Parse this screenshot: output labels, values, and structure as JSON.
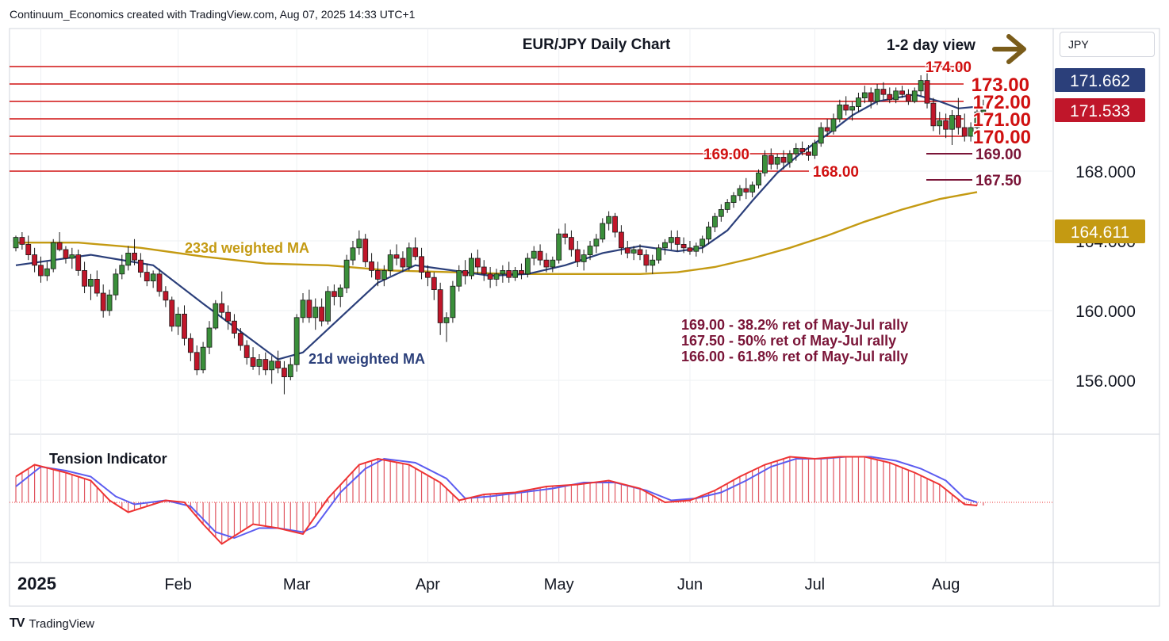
{
  "header": {
    "text": "Continuum_Economics created with TradingView.com, Aug 07, 2025 14:33 UTC+1"
  },
  "footer": {
    "logo": "TV",
    "brand": "TradingView"
  },
  "currency": "JPY",
  "colors": {
    "resistance": "#d01010",
    "support": "#7a1538",
    "up_candle": "#3a8f3a",
    "down_candle": "#c0162a",
    "ma21": "#2b3f7a",
    "ma233": "#c49a12",
    "arrow": "#7a5c1a",
    "tension_bar": "#e05560",
    "tension_fast": "#ee3333",
    "tension_slow": "#5c5cf0"
  },
  "icons": {
    "arrow": "right-arrow-icon",
    "logo": "tradingview-logo-icon"
  },
  "chart_data": {
    "type": "candlestick",
    "title": "EUR/JPY Daily Chart",
    "view_label": "1-2 day view",
    "x_labels": [
      "2025",
      "Feb",
      "Mar",
      "Apr",
      "May",
      "Jun",
      "Jul",
      "Aug"
    ],
    "y_ticks": [
      156.0,
      160.0,
      164.0,
      168.0
    ],
    "y_tick_labels": [
      "156.000",
      "160.000",
      "164.000",
      "168.000"
    ],
    "price_tags": [
      {
        "value": 171.662,
        "label": "171.662",
        "color": "#2b3f7a"
      },
      {
        "value": 171.533,
        "label": "171.533",
        "color": "#c0162a"
      },
      {
        "value": 164.611,
        "label": "164.611",
        "color": "#c49a12"
      }
    ],
    "resistance_levels": [
      174.0,
      173.0,
      172.0,
      171.0,
      170.0,
      169.0,
      168.0
    ],
    "resistance_labels": [
      "174.00",
      "173.00",
      "172.00",
      "171.00",
      "170.00",
      "169.00",
      "168.00"
    ],
    "support_levels": [
      169.0,
      167.5
    ],
    "support_labels": [
      "169.00",
      "167.50"
    ],
    "ma_labels": {
      "ma233": "233d weighted MA",
      "ma21": "21d weighted MA"
    },
    "notes": [
      "169.00 - 38.2% ret of May-Jul rally",
      "167.50 - 50% ret of May-Jul rally",
      "166.00 - 61.8% ret of May-Jul rally"
    ],
    "indicator": {
      "label": "Tension Indicator"
    },
    "candles": [
      [
        163.6,
        164.3,
        163.4,
        164.2
      ],
      [
        164.2,
        164.5,
        163.5,
        163.8
      ],
      [
        163.8,
        164.3,
        162.9,
        163.2
      ],
      [
        163.2,
        163.6,
        162.2,
        162.6
      ],
      [
        162.6,
        163.1,
        161.6,
        162.0
      ],
      [
        162.0,
        162.8,
        161.7,
        162.4
      ],
      [
        162.4,
        164.1,
        162.2,
        163.9
      ],
      [
        163.9,
        164.5,
        163.4,
        163.5
      ],
      [
        163.5,
        163.7,
        162.7,
        163.0
      ],
      [
        163.0,
        163.6,
        162.4,
        163.2
      ],
      [
        163.2,
        163.5,
        162.0,
        162.3
      ],
      [
        162.3,
        162.8,
        161.0,
        161.4
      ],
      [
        161.4,
        162.1,
        160.6,
        161.8
      ],
      [
        161.8,
        162.3,
        160.8,
        161.0
      ],
      [
        161.0,
        161.5,
        159.6,
        160.0
      ],
      [
        160.0,
        161.2,
        159.7,
        160.9
      ],
      [
        160.9,
        162.4,
        160.6,
        162.1
      ],
      [
        162.1,
        163.2,
        161.8,
        162.6
      ],
      [
        162.6,
        163.7,
        162.3,
        163.3
      ],
      [
        163.3,
        164.1,
        162.6,
        162.9
      ],
      [
        162.9,
        163.3,
        161.9,
        162.2
      ],
      [
        162.2,
        162.7,
        161.4,
        161.7
      ],
      [
        161.7,
        162.3,
        161.3,
        162.1
      ],
      [
        162.1,
        162.4,
        160.8,
        161.1
      ],
      [
        161.1,
        161.4,
        160.2,
        160.6
      ],
      [
        160.6,
        160.8,
        158.8,
        159.1
      ],
      [
        159.1,
        160.2,
        158.6,
        159.8
      ],
      [
        159.8,
        160.3,
        158.0,
        158.4
      ],
      [
        158.4,
        158.7,
        157.1,
        157.6
      ],
      [
        157.6,
        158.0,
        156.3,
        156.6
      ],
      [
        156.6,
        158.2,
        156.4,
        157.9
      ],
      [
        157.9,
        159.4,
        157.5,
        159.0
      ],
      [
        159.0,
        160.6,
        158.9,
        160.4
      ],
      [
        160.4,
        161.1,
        159.6,
        159.9
      ],
      [
        159.9,
        160.3,
        158.9,
        159.4
      ],
      [
        159.4,
        159.8,
        158.4,
        158.7
      ],
      [
        158.7,
        159.0,
        157.7,
        158.0
      ],
      [
        158.0,
        158.3,
        156.9,
        157.3
      ],
      [
        157.3,
        157.9,
        156.6,
        156.8
      ],
      [
        156.8,
        157.5,
        156.3,
        157.2
      ],
      [
        157.2,
        157.6,
        156.3,
        156.6
      ],
      [
        156.6,
        157.4,
        155.8,
        157.1
      ],
      [
        157.1,
        157.7,
        156.4,
        156.7
      ],
      [
        156.7,
        157.1,
        155.2,
        156.2
      ],
      [
        156.2,
        157.3,
        156.0,
        156.9
      ],
      [
        156.9,
        159.8,
        156.5,
        159.6
      ],
      [
        159.6,
        161.0,
        159.3,
        160.6
      ],
      [
        160.6,
        161.2,
        159.3,
        159.6
      ],
      [
        159.6,
        160.7,
        158.9,
        160.2
      ],
      [
        160.2,
        160.7,
        159.1,
        159.4
      ],
      [
        159.4,
        161.4,
        159.2,
        161.1
      ],
      [
        161.1,
        161.5,
        160.3,
        160.8
      ],
      [
        160.8,
        161.5,
        160.2,
        161.3
      ],
      [
        161.3,
        163.2,
        161.0,
        162.9
      ],
      [
        162.9,
        164.0,
        162.6,
        163.6
      ],
      [
        163.6,
        164.6,
        163.2,
        164.1
      ],
      [
        164.1,
        164.4,
        162.5,
        162.8
      ],
      [
        162.8,
        163.3,
        161.9,
        162.3
      ],
      [
        162.3,
        162.8,
        161.4,
        161.8
      ],
      [
        161.8,
        162.6,
        161.4,
        162.3
      ],
      [
        162.3,
        163.5,
        162.0,
        163.2
      ],
      [
        163.2,
        163.8,
        162.6,
        163.0
      ],
      [
        163.0,
        163.4,
        162.2,
        162.5
      ],
      [
        162.5,
        163.9,
        162.3,
        163.6
      ],
      [
        163.6,
        164.2,
        162.9,
        163.1
      ],
      [
        163.1,
        163.6,
        161.8,
        162.2
      ],
      [
        162.2,
        162.6,
        161.4,
        161.9
      ],
      [
        161.9,
        162.2,
        160.6,
        161.2
      ],
      [
        161.2,
        161.6,
        158.6,
        159.3
      ],
      [
        159.3,
        159.9,
        158.2,
        159.6
      ],
      [
        159.6,
        161.7,
        159.3,
        161.4
      ],
      [
        161.4,
        162.6,
        161.1,
        162.3
      ],
      [
        162.3,
        162.9,
        161.5,
        162.0
      ],
      [
        162.0,
        163.3,
        161.8,
        163.0
      ],
      [
        163.0,
        163.5,
        162.1,
        162.5
      ],
      [
        162.5,
        162.9,
        161.7,
        162.1
      ],
      [
        162.1,
        162.5,
        161.3,
        161.8
      ],
      [
        161.8,
        162.4,
        161.4,
        162.1
      ],
      [
        162.1,
        162.6,
        161.6,
        162.3
      ],
      [
        162.3,
        162.8,
        161.6,
        161.9
      ],
      [
        161.9,
        162.5,
        161.7,
        162.3
      ],
      [
        162.3,
        162.7,
        161.8,
        162.1
      ],
      [
        162.1,
        163.3,
        161.9,
        163.0
      ],
      [
        163.0,
        163.7,
        162.6,
        163.4
      ],
      [
        163.4,
        163.8,
        162.6,
        162.9
      ],
      [
        162.9,
        163.3,
        162.2,
        162.5
      ],
      [
        162.5,
        163.1,
        162.2,
        162.9
      ],
      [
        162.9,
        164.7,
        162.7,
        164.4
      ],
      [
        164.4,
        165.0,
        163.8,
        164.2
      ],
      [
        164.2,
        164.6,
        163.1,
        163.5
      ],
      [
        163.5,
        164.0,
        162.5,
        162.8
      ],
      [
        162.8,
        163.5,
        162.3,
        163.2
      ],
      [
        163.2,
        164.0,
        162.9,
        163.7
      ],
      [
        163.7,
        164.4,
        163.3,
        164.1
      ],
      [
        164.1,
        165.3,
        163.9,
        165.0
      ],
      [
        165.0,
        165.7,
        164.6,
        165.4
      ],
      [
        165.4,
        165.6,
        164.2,
        164.5
      ],
      [
        164.5,
        164.9,
        163.2,
        163.6
      ],
      [
        163.6,
        164.0,
        163.0,
        163.3
      ],
      [
        163.3,
        163.7,
        162.9,
        163.5
      ],
      [
        163.5,
        163.8,
        162.9,
        163.2
      ],
      [
        163.2,
        163.5,
        162.2,
        162.6
      ],
      [
        162.6,
        163.2,
        162.1,
        162.9
      ],
      [
        162.9,
        163.8,
        162.7,
        163.6
      ],
      [
        163.6,
        164.1,
        163.2,
        163.9
      ],
      [
        163.9,
        164.6,
        163.5,
        164.2
      ],
      [
        164.2,
        164.6,
        163.4,
        163.8
      ],
      [
        163.8,
        164.2,
        163.3,
        163.6
      ],
      [
        163.6,
        164.0,
        163.2,
        163.4
      ],
      [
        163.4,
        163.9,
        163.1,
        163.7
      ],
      [
        163.7,
        164.3,
        163.3,
        164.1
      ],
      [
        164.1,
        165.1,
        163.8,
        164.8
      ],
      [
        164.8,
        165.6,
        164.5,
        165.4
      ],
      [
        165.4,
        166.1,
        165.1,
        165.8
      ],
      [
        165.8,
        166.4,
        165.6,
        166.2
      ],
      [
        166.2,
        166.8,
        165.9,
        166.6
      ],
      [
        166.6,
        167.2,
        166.3,
        167.0
      ],
      [
        167.0,
        167.6,
        166.4,
        166.8
      ],
      [
        166.8,
        167.4,
        166.5,
        167.2
      ],
      [
        167.2,
        168.1,
        167.0,
        167.9
      ],
      [
        167.9,
        169.2,
        167.7,
        168.9
      ],
      [
        168.9,
        169.3,
        168.1,
        168.4
      ],
      [
        168.4,
        169.0,
        168.1,
        168.8
      ],
      [
        168.8,
        169.2,
        168.1,
        168.5
      ],
      [
        168.5,
        169.2,
        168.2,
        169.0
      ],
      [
        169.0,
        169.6,
        168.6,
        169.3
      ],
      [
        169.3,
        169.7,
        168.9,
        169.1
      ],
      [
        169.1,
        169.5,
        168.6,
        168.9
      ],
      [
        168.9,
        169.8,
        168.7,
        169.6
      ],
      [
        169.6,
        170.8,
        169.4,
        170.5
      ],
      [
        170.5,
        171.0,
        170.0,
        170.3
      ],
      [
        170.3,
        171.3,
        170.1,
        171.0
      ],
      [
        171.0,
        172.1,
        170.8,
        171.8
      ],
      [
        171.8,
        172.3,
        171.2,
        171.5
      ],
      [
        171.5,
        172.0,
        170.9,
        171.7
      ],
      [
        171.7,
        172.5,
        171.4,
        172.2
      ],
      [
        172.2,
        172.9,
        171.9,
        172.5
      ],
      [
        172.5,
        172.8,
        171.6,
        172.0
      ],
      [
        172.0,
        173.0,
        171.8,
        172.7
      ],
      [
        172.7,
        173.1,
        172.1,
        172.4
      ],
      [
        172.4,
        172.8,
        171.9,
        172.1
      ],
      [
        172.1,
        172.8,
        171.9,
        172.6
      ],
      [
        172.6,
        172.9,
        172.2,
        172.4
      ],
      [
        172.4,
        172.7,
        171.8,
        172.0
      ],
      [
        172.0,
        172.8,
        171.9,
        172.6
      ],
      [
        172.6,
        173.5,
        172.3,
        173.2
      ],
      [
        173.2,
        173.8,
        171.6,
        171.9
      ],
      [
        171.9,
        172.2,
        170.3,
        170.6
      ],
      [
        170.6,
        171.4,
        170.1,
        170.9
      ],
      [
        170.9,
        171.3,
        169.9,
        170.4
      ],
      [
        170.4,
        171.5,
        169.5,
        171.2
      ],
      [
        171.2,
        172.2,
        170.1,
        170.5
      ],
      [
        170.5,
        171.3,
        169.7,
        170.0
      ],
      [
        170.0,
        170.8,
        169.7,
        170.5
      ],
      [
        170.5,
        171.7,
        170.3,
        171.4
      ],
      [
        171.4,
        172.1,
        171.2,
        171.5
      ]
    ],
    "ma21": [
      [
        0,
        162.6
      ],
      [
        12,
        163.2
      ],
      [
        22,
        162.6
      ],
      [
        30,
        160.4
      ],
      [
        36,
        158.8
      ],
      [
        42,
        157.2
      ],
      [
        46,
        157.6
      ],
      [
        52,
        159.6
      ],
      [
        58,
        161.6
      ],
      [
        64,
        162.6
      ],
      [
        70,
        162.3
      ],
      [
        76,
        162.0
      ],
      [
        82,
        162.1
      ],
      [
        88,
        162.6
      ],
      [
        94,
        163.3
      ],
      [
        100,
        163.7
      ],
      [
        106,
        163.4
      ],
      [
        110,
        163.6
      ],
      [
        114,
        164.6
      ],
      [
        118,
        166.3
      ],
      [
        122,
        167.9
      ],
      [
        126,
        169.1
      ],
      [
        130,
        170.1
      ],
      [
        134,
        171.2
      ],
      [
        138,
        172.0
      ],
      [
        144,
        172.4
      ],
      [
        148,
        172.0
      ],
      [
        151,
        171.6
      ],
      [
        154,
        171.7
      ]
    ],
    "ma233": [
      [
        0,
        163.9
      ],
      [
        10,
        163.9
      ],
      [
        20,
        163.6
      ],
      [
        30,
        163.1
      ],
      [
        40,
        162.7
      ],
      [
        50,
        162.6
      ],
      [
        60,
        162.3
      ],
      [
        70,
        162.2
      ],
      [
        80,
        162.1
      ],
      [
        90,
        162.1
      ],
      [
        100,
        162.1
      ],
      [
        106,
        162.2
      ],
      [
        112,
        162.5
      ],
      [
        118,
        163.0
      ],
      [
        124,
        163.6
      ],
      [
        130,
        164.3
      ],
      [
        136,
        165.1
      ],
      [
        142,
        165.8
      ],
      [
        148,
        166.4
      ],
      [
        154,
        166.8
      ]
    ],
    "tension_fast": [
      [
        0,
        0.65
      ],
      [
        3,
        0.95
      ],
      [
        8,
        0.75
      ],
      [
        12,
        0.55
      ],
      [
        15,
        0.05
      ],
      [
        18,
        -0.25
      ],
      [
        24,
        0.05
      ],
      [
        27,
        0.0
      ],
      [
        30,
        -0.55
      ],
      [
        33,
        -1.05
      ],
      [
        38,
        -0.55
      ],
      [
        42,
        -0.65
      ],
      [
        46,
        -0.8
      ],
      [
        50,
        0.1
      ],
      [
        55,
        0.95
      ],
      [
        58,
        1.1
      ],
      [
        63,
        0.95
      ],
      [
        68,
        0.5
      ],
      [
        71,
        0.05
      ],
      [
        75,
        0.2
      ],
      [
        80,
        0.25
      ],
      [
        85,
        0.4
      ],
      [
        90,
        0.45
      ],
      [
        95,
        0.55
      ],
      [
        100,
        0.35
      ],
      [
        104,
        0.0
      ],
      [
        108,
        0.05
      ],
      [
        112,
        0.3
      ],
      [
        116,
        0.65
      ],
      [
        120,
        0.95
      ],
      [
        124,
        1.15
      ],
      [
        128,
        1.1
      ],
      [
        132,
        1.15
      ],
      [
        136,
        1.15
      ],
      [
        140,
        1.0
      ],
      [
        144,
        0.75
      ],
      [
        148,
        0.45
      ],
      [
        152,
        -0.05
      ],
      [
        154,
        -0.08
      ]
    ],
    "tension_slow": [
      [
        0,
        0.4
      ],
      [
        4,
        0.9
      ],
      [
        8,
        0.8
      ],
      [
        12,
        0.65
      ],
      [
        16,
        0.15
      ],
      [
        19,
        -0.05
      ],
      [
        24,
        0.05
      ],
      [
        28,
        -0.1
      ],
      [
        32,
        -0.75
      ],
      [
        35,
        -0.9
      ],
      [
        39,
        -0.65
      ],
      [
        42,
        -0.65
      ],
      [
        46,
        -0.75
      ],
      [
        48,
        -0.6
      ],
      [
        52,
        0.25
      ],
      [
        56,
        0.85
      ],
      [
        59,
        1.1
      ],
      [
        64,
        1.0
      ],
      [
        69,
        0.6
      ],
      [
        72,
        0.1
      ],
      [
        76,
        0.15
      ],
      [
        81,
        0.25
      ],
      [
        86,
        0.35
      ],
      [
        91,
        0.5
      ],
      [
        96,
        0.5
      ],
      [
        101,
        0.3
      ],
      [
        105,
        0.05
      ],
      [
        109,
        0.1
      ],
      [
        113,
        0.25
      ],
      [
        117,
        0.55
      ],
      [
        121,
        0.9
      ],
      [
        125,
        1.1
      ],
      [
        129,
        1.1
      ],
      [
        133,
        1.15
      ],
      [
        137,
        1.15
      ],
      [
        141,
        1.05
      ],
      [
        145,
        0.85
      ],
      [
        149,
        0.55
      ],
      [
        152,
        0.1
      ],
      [
        154,
        0.0
      ]
    ]
  }
}
